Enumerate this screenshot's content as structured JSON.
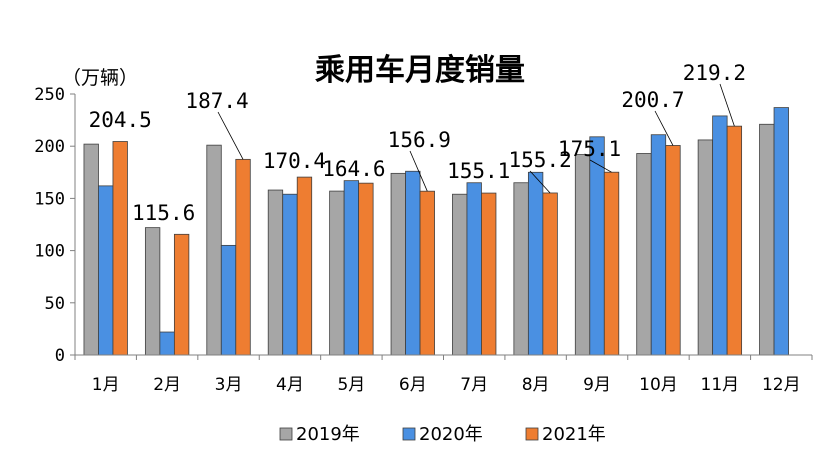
{
  "chart_data": {
    "type": "bar",
    "title": "乘用车月度销量",
    "ylabel": "（万辆）",
    "ylim": [
      0,
      250
    ],
    "yticks": [
      0,
      50,
      100,
      150,
      200,
      250
    ],
    "categories": [
      "1月",
      "2月",
      "3月",
      "4月",
      "5月",
      "6月",
      "7月",
      "8月",
      "9月",
      "10月",
      "11月",
      "12月"
    ],
    "series": [
      {
        "name": "2019年",
        "color": "#a6a6a6",
        "values": [
          202,
          122,
          201,
          158,
          157,
          174,
          154,
          165,
          192,
          193,
          206,
          221
        ]
      },
      {
        "name": "2020年",
        "color": "#4a90e2",
        "values": [
          162,
          22,
          105,
          154,
          167,
          176,
          165,
          175,
          209,
          211,
          229,
          237
        ]
      },
      {
        "name": "2021年",
        "color": "#ee7d31",
        "values": [
          204.5,
          115.6,
          187.4,
          170.4,
          164.6,
          156.9,
          155.1,
          155.2,
          175.1,
          200.7,
          219.2,
          null
        ]
      }
    ],
    "data_labels": [
      "204.5",
      "115.6",
      "187.4",
      "170.4",
      "164.6",
      "156.9",
      "155.1",
      "155.2",
      "175.1",
      "200.7",
      "219.2"
    ],
    "legend_position": "bottom",
    "grid": false
  }
}
